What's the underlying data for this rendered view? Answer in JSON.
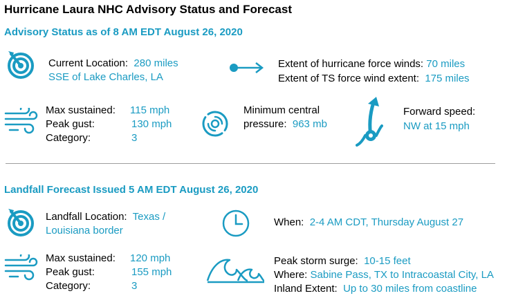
{
  "title": "Hurricane Laura NHC Advisory Status and Forecast",
  "advisory": {
    "heading": "Advisory Status as of 8 AM EDT August 26, 2020",
    "location_label": "Current Location:",
    "location_value_1": "280 miles",
    "location_value_2": "SSE of Lake Charles, LA",
    "hurricane_winds_label": "Extent of hurricane force winds:",
    "hurricane_winds_value": "70 miles",
    "ts_winds_label": "Extent of TS force wind extent:",
    "ts_winds_value": "175 miles",
    "max_sustained_label": "Max sustained:",
    "max_sustained_value": "115 mph",
    "peak_gust_label": "Peak gust:",
    "peak_gust_value": "130 mph",
    "category_label": "Category:",
    "category_value": "3",
    "pressure_label_1": "Minimum central",
    "pressure_label_2": "pressure:",
    "pressure_value": "963 mb",
    "forward_label": "Forward speed:",
    "forward_value": "NW at 15 mph"
  },
  "landfall": {
    "heading": "Landfall Forecast Issued 5 AM EDT August 26, 2020",
    "location_label": "Landfall Location:",
    "location_value_1": "Texas /",
    "location_value_2": "Louisiana border",
    "when_label": "When:",
    "when_value": "2-4 AM CDT, Thursday August 27",
    "max_sustained_label": "Max sustained:",
    "max_sustained_value": "120 mph",
    "peak_gust_label": "Peak gust:",
    "peak_gust_value": "155 mph",
    "category_label": "Category:",
    "category_value": "3",
    "surge_label": "Peak storm surge:",
    "surge_value": "10-15 feet",
    "where_label": "Where:",
    "where_value": "Sabine Pass, TX to Intracoastal City, LA",
    "inland_label": "Inland Extent:",
    "inland_value": "Up to 30 miles from coastline"
  },
  "colors": {
    "accent": "#1a9bc2",
    "divider": "#9e9e9e"
  },
  "icons": [
    "target-icon",
    "arrow-icon",
    "wind-icon",
    "hurricane-icon",
    "track-icon",
    "clock-icon",
    "wave-icon"
  ]
}
